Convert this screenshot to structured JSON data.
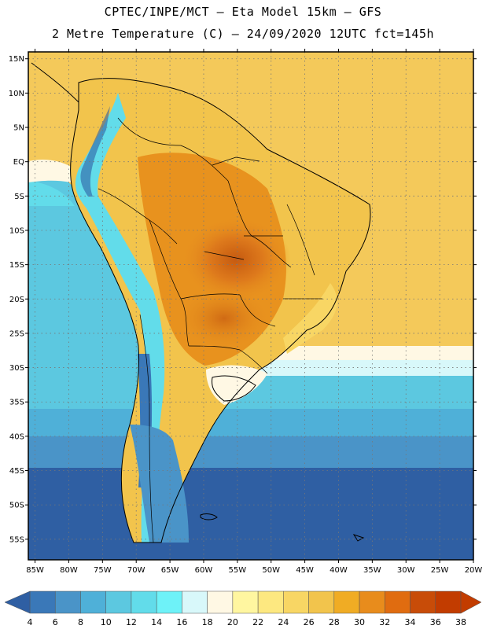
{
  "header": {
    "line1": "CPTEC/INPE/MCT –  Eta Model 15km – GFS",
    "line2": "2 Metre Temperature (C) – 24/09/2020 12UTC fct=145h"
  },
  "axes": {
    "lat_labels": [
      "15N",
      "10N",
      "5N",
      "EQ",
      "5S",
      "10S",
      "15S",
      "20S",
      "25S",
      "30S",
      "35S",
      "40S",
      "45S",
      "50S",
      "55S"
    ],
    "lon_labels": [
      "85W",
      "80W",
      "75W",
      "70W",
      "65W",
      "60W",
      "55W",
      "50W",
      "45W",
      "40W",
      "35W",
      "30W",
      "25W",
      "20W"
    ],
    "lat_range": [
      16,
      -58
    ],
    "lon_range": [
      -86,
      -20
    ]
  },
  "legend": {
    "labels": [
      "4",
      "6",
      "8",
      "10",
      "12",
      "14",
      "16",
      "18",
      "20",
      "22",
      "24",
      "26",
      "28",
      "30",
      "32",
      "34",
      "36",
      "38"
    ],
    "colors": [
      "#2f5fa3",
      "#3a78b8",
      "#4a94c8",
      "#4fb0d8",
      "#5cc8e0",
      "#62dcea",
      "#6ef2f8",
      "#d8f8fa",
      "#fff8e4",
      "#fff6a0",
      "#fde880",
      "#f8d664",
      "#f2c44c",
      "#f0ac24",
      "#e88c1c",
      "#e06c10",
      "#c84c08",
      "#c23c00"
    ],
    "under_color": "#2f5fa3",
    "over_color": "#c23c00"
  }
}
